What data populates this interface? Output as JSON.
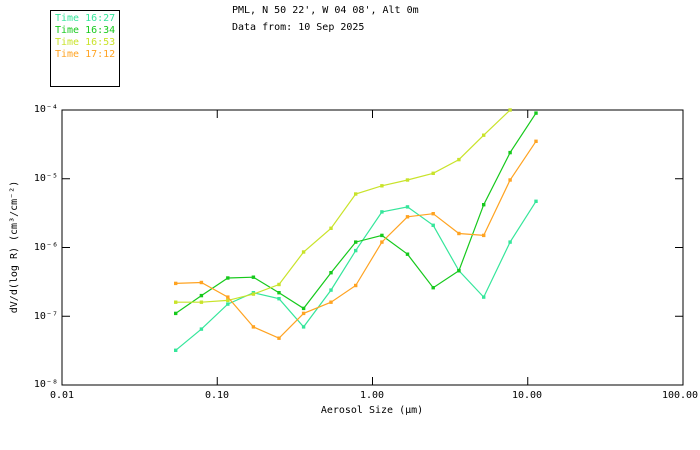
{
  "header": {
    "title_line1": "PML, N 50 22', W 04 08', Alt 0m",
    "title_line2": "Data from: 10 Sep 2025"
  },
  "legend": {
    "items": [
      {
        "label": "Time 16:27",
        "color": "#35E69B"
      },
      {
        "label": "Time 16:34",
        "color": "#16C91C"
      },
      {
        "label": "Time 16:53",
        "color": "#C9E32A"
      },
      {
        "label": "Time 17:12",
        "color": "#FFA321"
      }
    ]
  },
  "chart_data": {
    "type": "line",
    "title": "PML, N 50 22', W 04 08', Alt 0m — Data from: 10 Sep 2025",
    "xlabel": "Aerosol Size (μm)",
    "ylabel": "dV/d(log R) (cm³/cm⁻²)",
    "x_scale": "log",
    "y_scale": "log",
    "xlim": [
      0.01,
      100
    ],
    "ylim": [
      1e-08,
      0.0001
    ],
    "x_tick_values": [
      0.01,
      0.1,
      1,
      10,
      100
    ],
    "x_ticks": [
      "0.01",
      "0.10",
      "1.00",
      "10.00",
      "100.00"
    ],
    "y_tick_values": [
      0.0001,
      1e-05,
      1e-06,
      1e-07,
      1e-08
    ],
    "y_ticks": [
      "10⁻⁴",
      "10⁻⁵",
      "10⁻⁶",
      "10⁻⁷",
      "10⁻⁸"
    ],
    "legend_position": "top-left",
    "grid": false,
    "x": [
      0.054,
      0.079,
      0.117,
      0.171,
      0.25,
      0.36,
      0.54,
      0.78,
      1.15,
      1.68,
      2.46,
      3.6,
      5.2,
      7.7,
      11.3
    ],
    "series": [
      {
        "name": "Time 16:27",
        "color": "#35E69B",
        "values": [
          3.2e-08,
          6.5e-08,
          1.5e-07,
          2.2e-07,
          1.8e-07,
          7e-08,
          2.4e-07,
          9e-07,
          3.3e-06,
          3.9e-06,
          2.1e-06,
          4.6e-07,
          1.9e-07,
          1.2e-06,
          4.7e-06
        ]
      },
      {
        "name": "Time 16:34",
        "color": "#16C91C",
        "values": [
          1.1e-07,
          2e-07,
          3.6e-07,
          3.7e-07,
          2.2e-07,
          1.3e-07,
          4.3e-07,
          1.2e-06,
          1.5e-06,
          8e-07,
          2.6e-07,
          4.6e-07,
          4.2e-06,
          2.4e-05,
          9e-05
        ]
      },
      {
        "name": "Time 16:53",
        "color": "#C9E32A",
        "values": [
          1.6e-07,
          1.6e-07,
          1.7e-07,
          2.1e-07,
          2.9e-07,
          8.6e-07,
          1.9e-06,
          6e-06,
          7.9e-06,
          9.6e-06,
          1.2e-05,
          1.9e-05,
          4.3e-05,
          0.0001,
          null
        ]
      },
      {
        "name": "Time 17:12",
        "color": "#FFA321",
        "values": [
          3e-07,
          3.1e-07,
          1.9e-07,
          7e-08,
          4.8e-08,
          1.1e-07,
          1.6e-07,
          2.8e-07,
          1.2e-06,
          2.8e-06,
          3.1e-06,
          1.6e-06,
          1.5e-06,
          9.6e-06,
          3.5e-05
        ]
      }
    ]
  }
}
